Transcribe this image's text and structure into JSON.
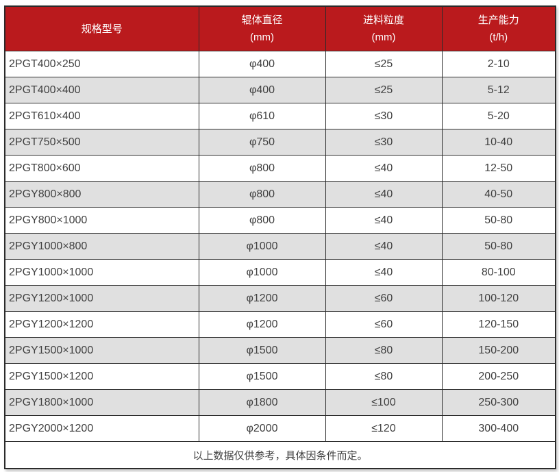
{
  "colors": {
    "header_bg": "#ba1a1d",
    "header_text": "#ffffff",
    "border": "#2b2b2b",
    "body_text": "#404040",
    "row_alt_bg": "#e0e0e0"
  },
  "table": {
    "header": [
      {
        "title": "规格型号",
        "unit": ""
      },
      {
        "title": "辊体直径",
        "unit": "(mm)"
      },
      {
        "title": "进料粒度",
        "unit": "(mm)"
      },
      {
        "title": "生产能力",
        "unit": "(t/h)"
      }
    ],
    "cell_names": [
      "model",
      "roller-diameter",
      "feed-size",
      "capacity"
    ],
    "footnote": "以上数据仅供参考，具体因条件而定。"
  },
  "chart_data": {
    "type": "table",
    "title": "",
    "columns": [
      "规格型号",
      "辊体直径 (mm)",
      "进料粒度 (mm)",
      "生产能力 (t/h)"
    ],
    "rows": [
      [
        "2PGT400×250",
        "φ400",
        "≤25",
        "2-10"
      ],
      [
        "2PGT400×400",
        "φ400",
        "≤25",
        "5-12"
      ],
      [
        "2PGT610×400",
        "φ610",
        "≤30",
        "5-20"
      ],
      [
        "2PGT750×500",
        "φ750",
        "≤30",
        "10-40"
      ],
      [
        "2PGT800×600",
        "φ800",
        "≤40",
        "12-50"
      ],
      [
        "2PGY800×800",
        "φ800",
        "≤40",
        "40-50"
      ],
      [
        "2PGY800×1000",
        "φ800",
        "≤40",
        "50-80"
      ],
      [
        "2PGY1000×800",
        "φ1000",
        "≤40",
        "50-80"
      ],
      [
        "2PGY1000×1000",
        "φ1000",
        "≤40",
        "80-100"
      ],
      [
        "2PGY1200×1000",
        "φ1200",
        "≤60",
        "100-120"
      ],
      [
        "2PGY1200×1200",
        "φ1200",
        "≤60",
        "120-150"
      ],
      [
        "2PGY1500×1000",
        "φ1500",
        "≤80",
        "150-200"
      ],
      [
        "2PGY1500×1200",
        "φ1500",
        "≤80",
        "200-250"
      ],
      [
        "2PGY1800×1000",
        "φ1800",
        "≤100",
        "250-300"
      ],
      [
        "2PGY2000×1200",
        "φ2000",
        "≤120",
        "300-400"
      ]
    ],
    "footnote": "以上数据仅供参考，具体因条件而定。"
  }
}
